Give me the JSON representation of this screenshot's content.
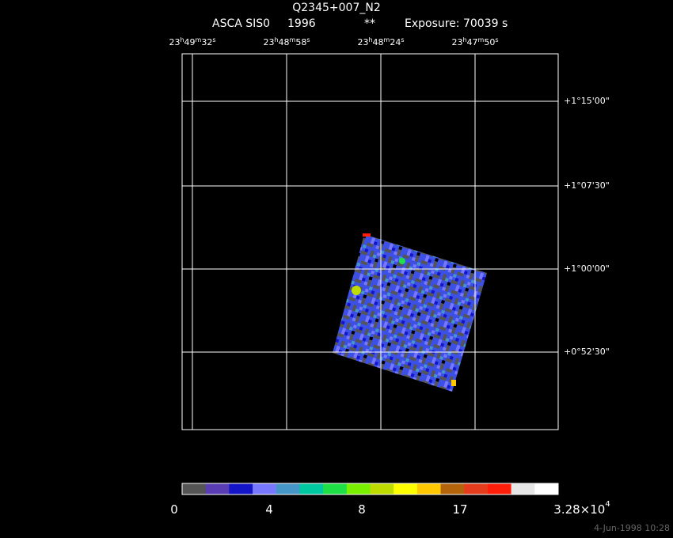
{
  "header": {
    "title": "Q2345+007_N2",
    "instrument": "ASCA SIS0",
    "year": "1996",
    "flag": "**",
    "exposure": "Exposure: 70039 s"
  },
  "ra_labels": [
    [
      "23",
      "h",
      "49",
      "m",
      "32",
      "s"
    ],
    [
      "23",
      "h",
      "48",
      "m",
      "58",
      "s"
    ],
    [
      "23",
      "h",
      "48",
      "m",
      "24",
      "s"
    ],
    [
      "23",
      "h",
      "47",
      "m",
      "50",
      "s"
    ]
  ],
  "dec_labels": [
    "+1°15'00\"",
    "+1°07'30\"",
    "+1°00'00\"",
    "+0°52'30\""
  ],
  "colorbar": {
    "colors": [
      "#555555",
      "#5a3cb4",
      "#1414c8",
      "#7878ff",
      "#4696c8",
      "#00c8a0",
      "#1ee046",
      "#78f000",
      "#bedc00",
      "#ffff00",
      "#ffc800",
      "#b4640a",
      "#e63c1e",
      "#ff1e0a",
      "#e6e6e6",
      "#ffffff"
    ],
    "labels": [
      [
        "0"
      ],
      [
        "4"
      ],
      [
        "8"
      ],
      [
        "17"
      ],
      [
        "3.28×10",
        "4"
      ]
    ]
  },
  "footer": "4-Jun-1998 10:28"
}
